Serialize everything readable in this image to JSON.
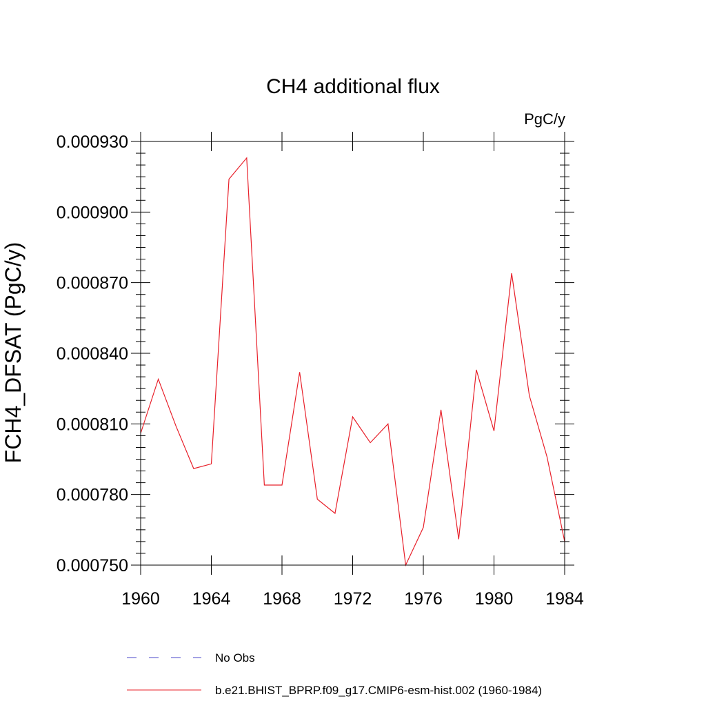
{
  "chart_data": {
    "type": "line",
    "title": "CH4 additional flux",
    "units": "PgC/y",
    "ylabel": "FCH4_DFSAT  (PgC/y)",
    "xlabel": "",
    "xlim": [
      1960,
      1984
    ],
    "ylim": [
      0.00075,
      0.00093
    ],
    "x_ticks": [
      1960,
      1964,
      1968,
      1972,
      1976,
      1980,
      1984
    ],
    "x_tick_labels": [
      "1960",
      "1964",
      "1968",
      "1972",
      "1976",
      "1980",
      "1984"
    ],
    "y_ticks": [
      0.00075,
      0.00078,
      0.00081,
      0.00084,
      0.00087,
      0.0009,
      0.00093
    ],
    "y_tick_labels": [
      "0.000750",
      "0.000780",
      "0.000810",
      "0.000840",
      "0.000870",
      "0.000900",
      "0.000930"
    ],
    "grid": false,
    "legend_position": "bottom",
    "series": [
      {
        "name": "b.e21.BHIST_BPRP.f09_g17.CMIP6-esm-hist.002 (1960-1984)",
        "color": "#e8202a",
        "style": "solid",
        "x": [
          1960,
          1961,
          1962,
          1963,
          1964,
          1965,
          1966,
          1967,
          1968,
          1969,
          1970,
          1971,
          1972,
          1973,
          1974,
          1975,
          1976,
          1977,
          1978,
          1979,
          1980,
          1981,
          1982,
          1983,
          1984
        ],
        "y": [
          0.000806,
          0.000829,
          0.000809,
          0.000791,
          0.000793,
          0.000914,
          0.000923,
          0.000784,
          0.000784,
          0.000832,
          0.000778,
          0.000772,
          0.000813,
          0.000802,
          0.00081,
          0.00075,
          0.000766,
          0.000816,
          0.000761,
          0.000833,
          0.000807,
          0.000874,
          0.000822,
          0.000796,
          0.00076
        ]
      }
    ],
    "legend": [
      {
        "label": "No Obs",
        "color": "#4a44c8",
        "style": "dashed"
      },
      {
        "label": "b.e21.BHIST_BPRP.f09_g17.CMIP6-esm-hist.002 (1960-1984)",
        "color": "#e8202a",
        "style": "solid"
      }
    ]
  }
}
